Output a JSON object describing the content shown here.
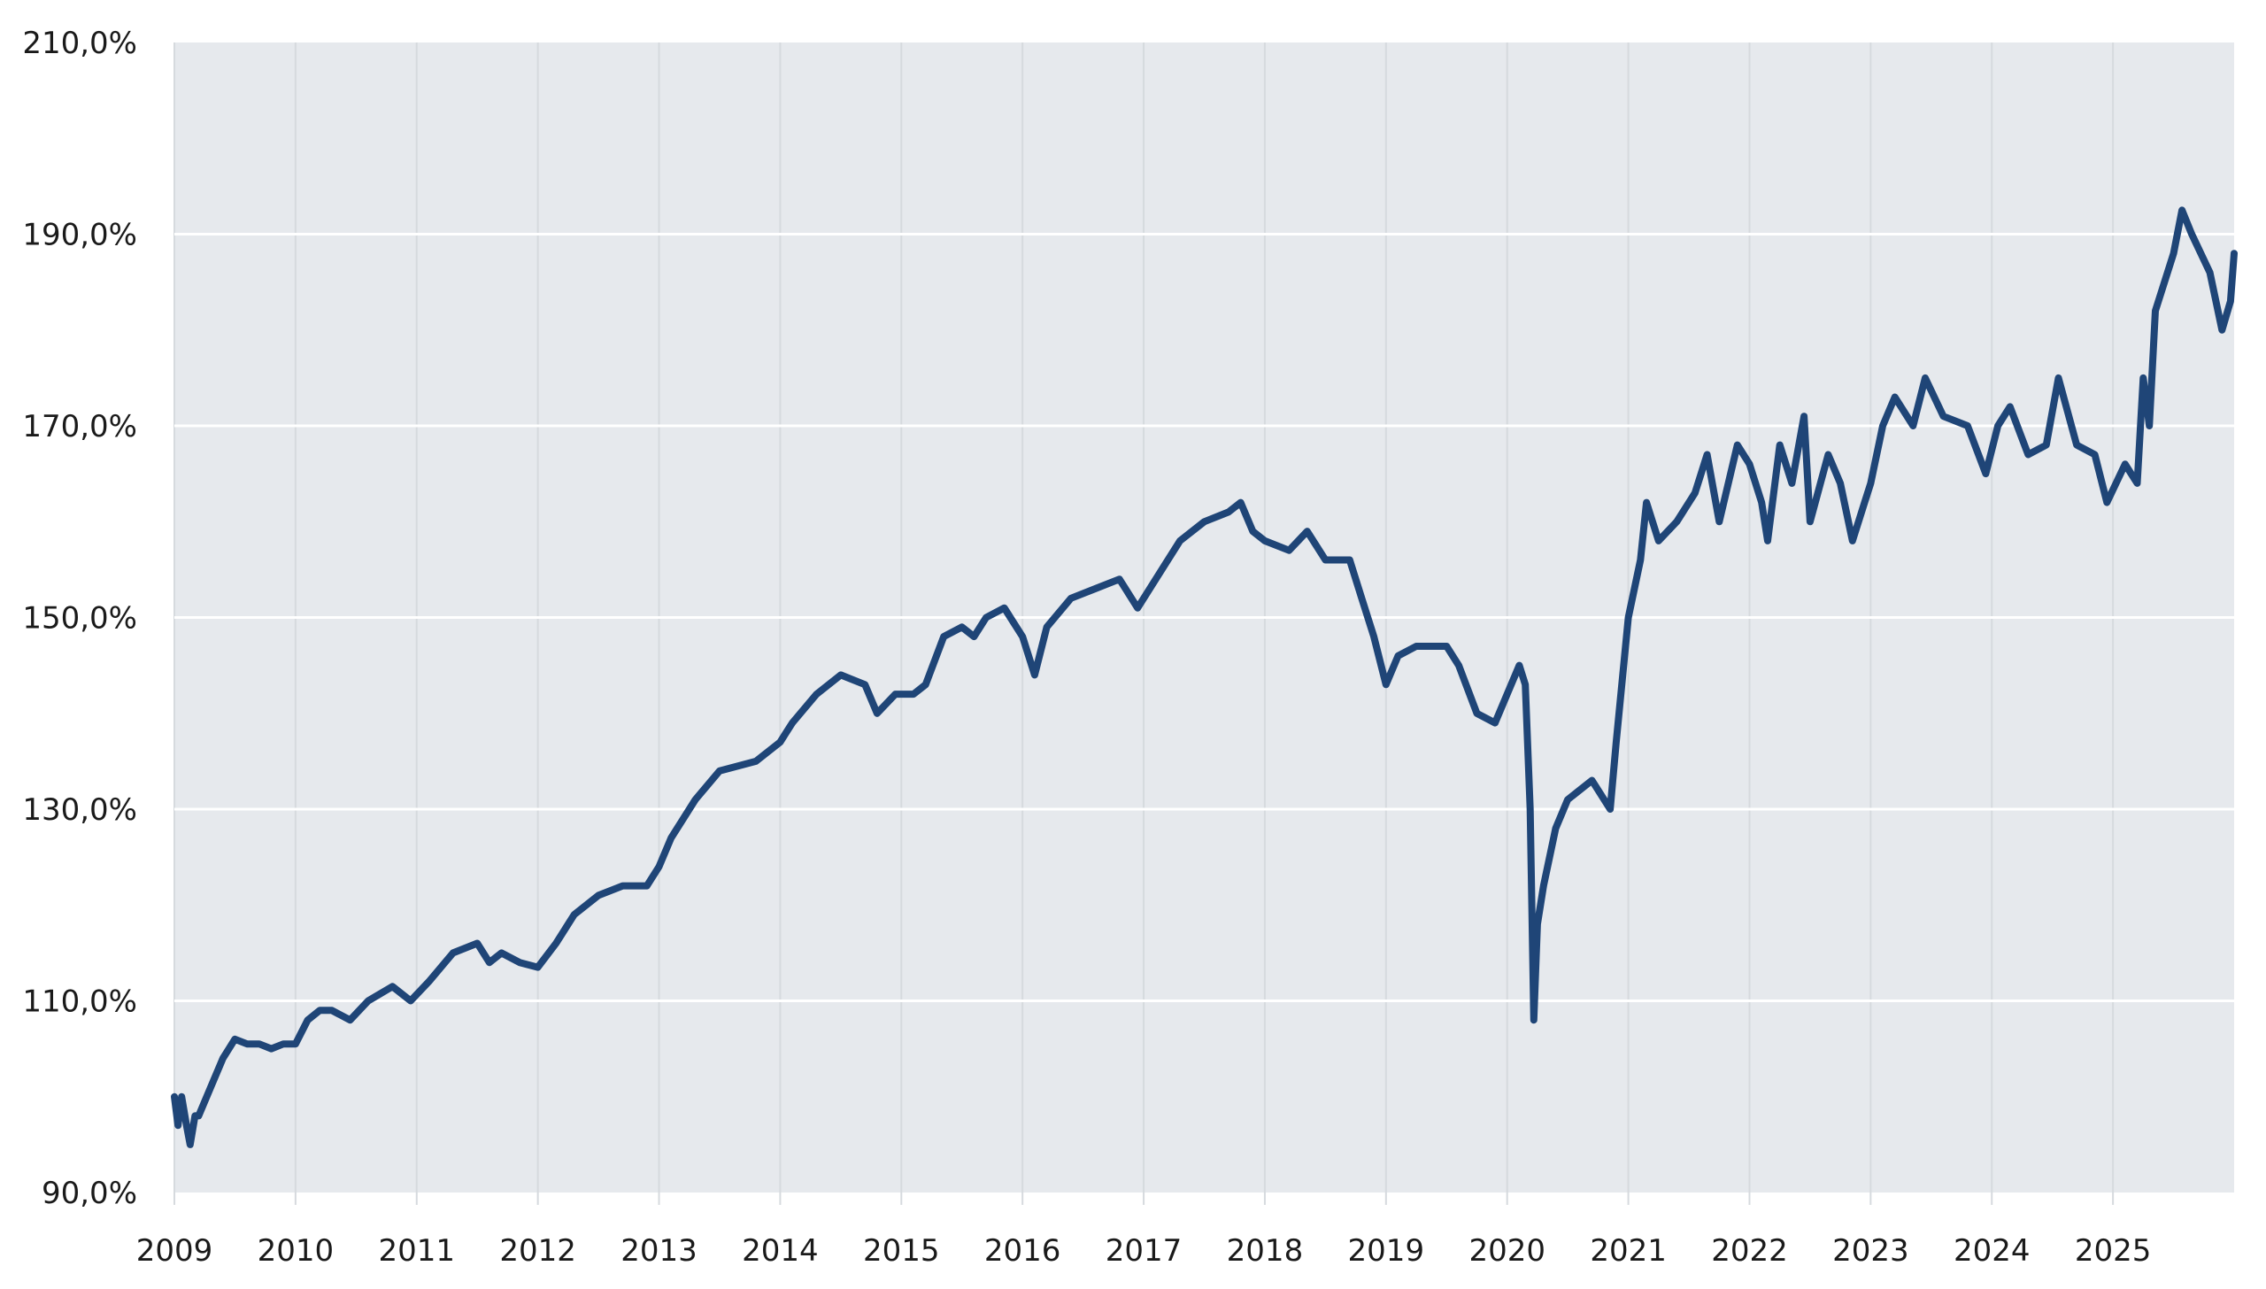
{
  "chart_data": {
    "type": "line",
    "title": "",
    "xlabel": "",
    "ylabel": "",
    "xlim": [
      2009,
      2026
    ],
    "ylim": [
      90,
      210
    ],
    "grid": {
      "horizontal": true,
      "vertical": true
    },
    "background": "#e6e9ed",
    "line_color": "#1f4577",
    "y_ticks": [
      90,
      110,
      130,
      150,
      170,
      190,
      210
    ],
    "y_tick_labels": [
      "90,0%",
      "110,0%",
      "130,0%",
      "150,0%",
      "170,0%",
      "190,0%",
      "210,0%"
    ],
    "x_ticks": [
      2009,
      2010,
      2011,
      2012,
      2013,
      2014,
      2015,
      2016,
      2017,
      2018,
      2019,
      2020,
      2021,
      2022,
      2023,
      2024,
      2025
    ],
    "x_tick_labels": [
      "2009",
      "2010",
      "2011",
      "2012",
      "2013",
      "2014",
      "2015",
      "2016",
      "2017",
      "2018",
      "2019",
      "2020",
      "2021",
      "2022",
      "2023",
      "2024",
      "2025"
    ],
    "series": [
      {
        "x": [
          2009.0,
          2009.03,
          2009.06,
          2009.1,
          2009.13,
          2009.17,
          2009.2,
          2009.3,
          2009.4,
          2009.5,
          2009.6,
          2009.7,
          2009.8,
          2009.9,
          2010.0,
          2010.1,
          2010.2,
          2010.3,
          2010.45,
          2010.6,
          2010.8,
          2010.95,
          2011.1,
          2011.3,
          2011.5,
          2011.6,
          2011.7,
          2011.85,
          2012.0,
          2012.15,
          2012.3,
          2012.5,
          2012.7,
          2012.9,
          2013.0,
          2013.1,
          2013.3,
          2013.5,
          2013.8,
          2014.0,
          2014.1,
          2014.3,
          2014.5,
          2014.7,
          2014.8,
          2014.95,
          2015.1,
          2015.2,
          2015.35,
          2015.5,
          2015.6,
          2015.7,
          2015.85,
          2016.0,
          2016.1,
          2016.2,
          2016.4,
          2016.6,
          2016.8,
          2016.95,
          2017.1,
          2017.3,
          2017.5,
          2017.7,
          2017.8,
          2017.9,
          2018.0,
          2018.2,
          2018.35,
          2018.5,
          2018.7,
          2018.8,
          2018.9,
          2019.0,
          2019.1,
          2019.25,
          2019.4,
          2019.5,
          2019.6,
          2019.75,
          2019.9,
          2020.0,
          2020.1,
          2020.15,
          2020.19,
          2020.22,
          2020.25,
          2020.3,
          2020.4,
          2020.5,
          2020.7,
          2020.85,
          2020.9,
          2021.0,
          2021.1,
          2021.15,
          2021.25,
          2021.4,
          2021.55,
          2021.65,
          2021.75,
          2021.9,
          2022.0,
          2022.1,
          2022.15,
          2022.25,
          2022.35,
          2022.45,
          2022.5,
          2022.65,
          2022.75,
          2022.85,
          2022.95,
          2023.0,
          2023.1,
          2023.2,
          2023.35,
          2023.45,
          2023.6,
          2023.8,
          2023.95,
          2024.05,
          2024.15,
          2024.3,
          2024.45,
          2024.55,
          2024.7,
          2024.85,
          2024.95,
          2025.1,
          2025.2,
          2025.25,
          2025.3,
          2025.35,
          2025.5,
          2025.57,
          2025.65,
          2025.8,
          2025.9,
          2025.97,
          2026.0
        ],
        "y": [
          100,
          97,
          100,
          97,
          95,
          98,
          98,
          101,
          104,
          106,
          105.5,
          105.5,
          105,
          105.5,
          105.5,
          108,
          109,
          109,
          108,
          110,
          111.5,
          110,
          112,
          115,
          116,
          114,
          115,
          114,
          113.5,
          116,
          119,
          121,
          122,
          122,
          124,
          127,
          131,
          134,
          135,
          137,
          139,
          142,
          144,
          143,
          140,
          142,
          142,
          143,
          148,
          149,
          148,
          150,
          151,
          148,
          144,
          149,
          152,
          153,
          154,
          151,
          154,
          158,
          160,
          161,
          162,
          159,
          158,
          157,
          159,
          156,
          156,
          152,
          148,
          143,
          146,
          147,
          147,
          147,
          145,
          140,
          139,
          142,
          145,
          143,
          130,
          108,
          118,
          122,
          128,
          131,
          133,
          130,
          137,
          150,
          156,
          162,
          158,
          160,
          163,
          167,
          160,
          168,
          166,
          162,
          158,
          168,
          164,
          171,
          160,
          167,
          164,
          158,
          162,
          164,
          170,
          173,
          170,
          175,
          171,
          170,
          165,
          170,
          172,
          167,
          168,
          175,
          168,
          167,
          162,
          166,
          164,
          175,
          170,
          182,
          188,
          192.5,
          190,
          186,
          180,
          183,
          188
        ]
      }
    ]
  }
}
